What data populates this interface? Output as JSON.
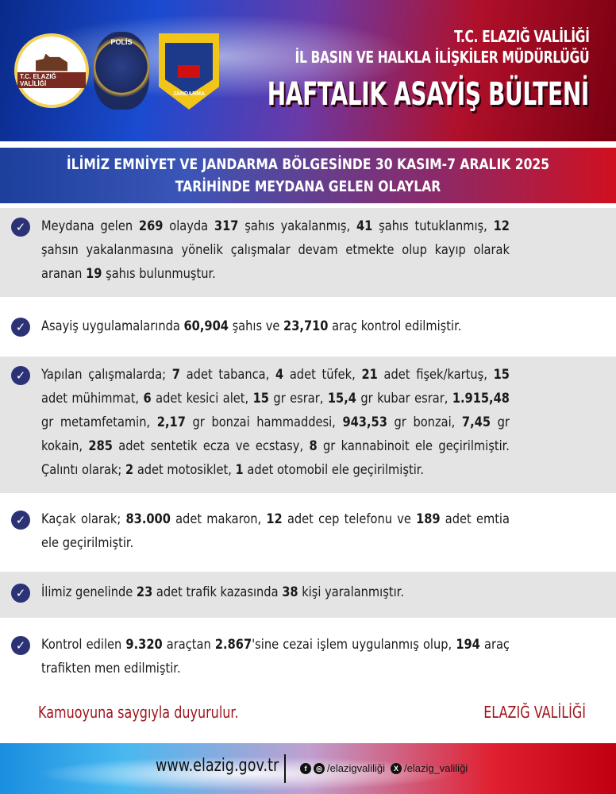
{
  "header": {
    "line1": "T.C. ELAZIĞ VALİLİĞİ",
    "line2": "İL BASIN VE HALKLA İLİŞKİLER MÜDÜRLÜĞÜ",
    "title": "HAFTALIK ASAYİŞ BÜLTENİ",
    "logos": {
      "valilik": "T.C. ELAZIĞ VALİLİĞİ",
      "polis": "POLİS",
      "jandarma": "JANDARMA"
    }
  },
  "band": {
    "line1": "İLİMİZ EMNİYET VE JANDARMA BÖLGESİNDE 30 KASIM-7 ARALIK 2025",
    "line2": "TARİHİNDE MEYDANA GELEN OLAYLAR"
  },
  "items": [
    [
      [
        "Meydana gelen ",
        0
      ],
      [
        "269",
        1
      ],
      [
        " olayda ",
        0
      ],
      [
        "317",
        1
      ],
      [
        " şahıs yakalanmış, ",
        0
      ],
      [
        "41",
        1
      ],
      [
        " şahıs tutuklanmış, ",
        0
      ],
      [
        "12",
        1
      ],
      [
        " şahsın yakalanmasına yönelik çalışmalar devam etmekte olup kayıp olarak aranan ",
        0
      ],
      [
        "19",
        1
      ],
      [
        " şahıs bulunmuştur.",
        0
      ]
    ],
    [
      [
        "Asayiş uygulamalarında ",
        0
      ],
      [
        "60,904",
        1
      ],
      [
        " şahıs ve ",
        0
      ],
      [
        "23,710",
        1
      ],
      [
        " araç kontrol edilmiştir.",
        0
      ]
    ],
    [
      [
        "Yapılan çalışmalarda; ",
        0
      ],
      [
        "7",
        1
      ],
      [
        " adet tabanca, ",
        0
      ],
      [
        "4",
        1
      ],
      [
        " adet tüfek, ",
        0
      ],
      [
        "21",
        1
      ],
      [
        " adet fişek/kartuş, ",
        0
      ],
      [
        "15",
        1
      ],
      [
        " adet mühimmat, ",
        0
      ],
      [
        "6",
        1
      ],
      [
        " adet kesici alet, ",
        0
      ],
      [
        "15",
        1
      ],
      [
        " gr esrar, ",
        0
      ],
      [
        "15,4",
        1
      ],
      [
        " gr kubar esrar, ",
        0
      ],
      [
        "1.915,48",
        1
      ],
      [
        " gr metamfetamin, ",
        0
      ],
      [
        "2,17",
        1
      ],
      [
        " gr bonzai hammaddesi, ",
        0
      ],
      [
        "943,53",
        1
      ],
      [
        " gr bonzai, ",
        0
      ],
      [
        "7,45",
        1
      ],
      [
        " gr kokain, ",
        0
      ],
      [
        "285",
        1
      ],
      [
        " adet sentetik ecza ve ecstasy, ",
        0
      ],
      [
        "8",
        1
      ],
      [
        " gr kannabinoit ele geçirilmiştir. Çalıntı olarak; ",
        0
      ],
      [
        "2",
        1
      ],
      [
        " adet motosiklet, ",
        0
      ],
      [
        "1",
        1
      ],
      [
        " adet otomobil ele geçirilmiştir.",
        0
      ]
    ],
    [
      [
        "Kaçak olarak; ",
        0
      ],
      [
        "83.000",
        1
      ],
      [
        " adet makaron, ",
        0
      ],
      [
        "12",
        1
      ],
      [
        " adet cep telefonu ve ",
        0
      ],
      [
        "189",
        1
      ],
      [
        " adet emtia ele geçirilmiştir.",
        0
      ]
    ],
    [
      [
        "İlimiz genelinde ",
        0
      ],
      [
        "23",
        1
      ],
      [
        " adet trafik kazasında ",
        0
      ],
      [
        "38",
        1
      ],
      [
        " kişi yaralanmıştır.",
        0
      ]
    ],
    [
      [
        "Kontrol edilen ",
        0
      ],
      [
        "9.320",
        1
      ],
      [
        " araçtan ",
        0
      ],
      [
        "2.867",
        1
      ],
      [
        "'sine cezai işlem uygulanmış olup, ",
        0
      ],
      [
        "194",
        1
      ],
      [
        " araç trafikten men edilmiştir.",
        0
      ]
    ]
  ],
  "closing": {
    "left": "Kamuoyuna saygıyla duyurulur.",
    "right": "ELAZIĞ VALİLİĞİ"
  },
  "footer": {
    "website": "www.elazig.gov.tr",
    "instagram_facebook": "/elazigvaliliği",
    "x": "/elazig_valiliği"
  },
  "colors": {
    "check": "#2b3276",
    "closing": "#a0141c",
    "row_alt": "#e4e4e4"
  }
}
